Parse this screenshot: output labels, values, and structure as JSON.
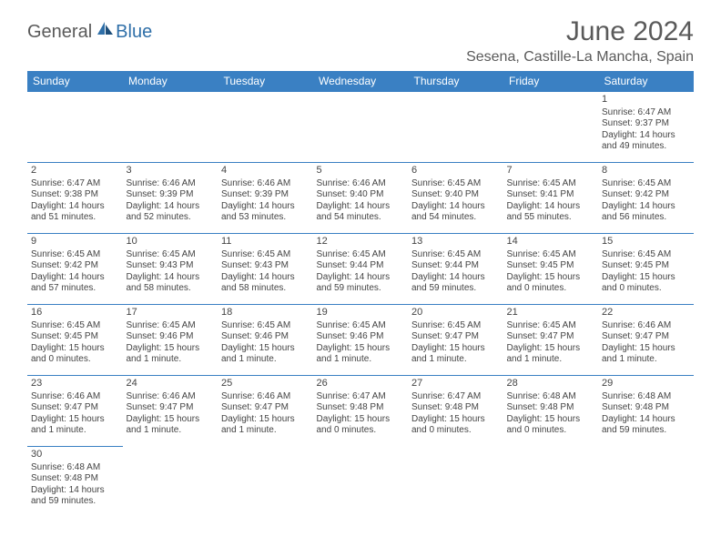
{
  "logo": {
    "part1": "General",
    "part2": "Blue"
  },
  "title": "June 2024",
  "location": "Sesena, Castille-La Mancha, Spain",
  "colors": {
    "header_bg": "#3a80c3",
    "header_text": "#ffffff",
    "border": "#3a80c3",
    "text": "#444444",
    "title_text": "#5a5a5a",
    "logo_blue": "#2f6fa8"
  },
  "day_headers": [
    "Sunday",
    "Monday",
    "Tuesday",
    "Wednesday",
    "Thursday",
    "Friday",
    "Saturday"
  ],
  "weeks": [
    [
      null,
      null,
      null,
      null,
      null,
      null,
      {
        "n": "1",
        "sr": "Sunrise: 6:47 AM",
        "ss": "Sunset: 9:37 PM",
        "dl1": "Daylight: 14 hours",
        "dl2": "and 49 minutes."
      }
    ],
    [
      {
        "n": "2",
        "sr": "Sunrise: 6:47 AM",
        "ss": "Sunset: 9:38 PM",
        "dl1": "Daylight: 14 hours",
        "dl2": "and 51 minutes."
      },
      {
        "n": "3",
        "sr": "Sunrise: 6:46 AM",
        "ss": "Sunset: 9:39 PM",
        "dl1": "Daylight: 14 hours",
        "dl2": "and 52 minutes."
      },
      {
        "n": "4",
        "sr": "Sunrise: 6:46 AM",
        "ss": "Sunset: 9:39 PM",
        "dl1": "Daylight: 14 hours",
        "dl2": "and 53 minutes."
      },
      {
        "n": "5",
        "sr": "Sunrise: 6:46 AM",
        "ss": "Sunset: 9:40 PM",
        "dl1": "Daylight: 14 hours",
        "dl2": "and 54 minutes."
      },
      {
        "n": "6",
        "sr": "Sunrise: 6:45 AM",
        "ss": "Sunset: 9:40 PM",
        "dl1": "Daylight: 14 hours",
        "dl2": "and 54 minutes."
      },
      {
        "n": "7",
        "sr": "Sunrise: 6:45 AM",
        "ss": "Sunset: 9:41 PM",
        "dl1": "Daylight: 14 hours",
        "dl2": "and 55 minutes."
      },
      {
        "n": "8",
        "sr": "Sunrise: 6:45 AM",
        "ss": "Sunset: 9:42 PM",
        "dl1": "Daylight: 14 hours",
        "dl2": "and 56 minutes."
      }
    ],
    [
      {
        "n": "9",
        "sr": "Sunrise: 6:45 AM",
        "ss": "Sunset: 9:42 PM",
        "dl1": "Daylight: 14 hours",
        "dl2": "and 57 minutes."
      },
      {
        "n": "10",
        "sr": "Sunrise: 6:45 AM",
        "ss": "Sunset: 9:43 PM",
        "dl1": "Daylight: 14 hours",
        "dl2": "and 58 minutes."
      },
      {
        "n": "11",
        "sr": "Sunrise: 6:45 AM",
        "ss": "Sunset: 9:43 PM",
        "dl1": "Daylight: 14 hours",
        "dl2": "and 58 minutes."
      },
      {
        "n": "12",
        "sr": "Sunrise: 6:45 AM",
        "ss": "Sunset: 9:44 PM",
        "dl1": "Daylight: 14 hours",
        "dl2": "and 59 minutes."
      },
      {
        "n": "13",
        "sr": "Sunrise: 6:45 AM",
        "ss": "Sunset: 9:44 PM",
        "dl1": "Daylight: 14 hours",
        "dl2": "and 59 minutes."
      },
      {
        "n": "14",
        "sr": "Sunrise: 6:45 AM",
        "ss": "Sunset: 9:45 PM",
        "dl1": "Daylight: 15 hours",
        "dl2": "and 0 minutes."
      },
      {
        "n": "15",
        "sr": "Sunrise: 6:45 AM",
        "ss": "Sunset: 9:45 PM",
        "dl1": "Daylight: 15 hours",
        "dl2": "and 0 minutes."
      }
    ],
    [
      {
        "n": "16",
        "sr": "Sunrise: 6:45 AM",
        "ss": "Sunset: 9:45 PM",
        "dl1": "Daylight: 15 hours",
        "dl2": "and 0 minutes."
      },
      {
        "n": "17",
        "sr": "Sunrise: 6:45 AM",
        "ss": "Sunset: 9:46 PM",
        "dl1": "Daylight: 15 hours",
        "dl2": "and 1 minute."
      },
      {
        "n": "18",
        "sr": "Sunrise: 6:45 AM",
        "ss": "Sunset: 9:46 PM",
        "dl1": "Daylight: 15 hours",
        "dl2": "and 1 minute."
      },
      {
        "n": "19",
        "sr": "Sunrise: 6:45 AM",
        "ss": "Sunset: 9:46 PM",
        "dl1": "Daylight: 15 hours",
        "dl2": "and 1 minute."
      },
      {
        "n": "20",
        "sr": "Sunrise: 6:45 AM",
        "ss": "Sunset: 9:47 PM",
        "dl1": "Daylight: 15 hours",
        "dl2": "and 1 minute."
      },
      {
        "n": "21",
        "sr": "Sunrise: 6:45 AM",
        "ss": "Sunset: 9:47 PM",
        "dl1": "Daylight: 15 hours",
        "dl2": "and 1 minute."
      },
      {
        "n": "22",
        "sr": "Sunrise: 6:46 AM",
        "ss": "Sunset: 9:47 PM",
        "dl1": "Daylight: 15 hours",
        "dl2": "and 1 minute."
      }
    ],
    [
      {
        "n": "23",
        "sr": "Sunrise: 6:46 AM",
        "ss": "Sunset: 9:47 PM",
        "dl1": "Daylight: 15 hours",
        "dl2": "and 1 minute."
      },
      {
        "n": "24",
        "sr": "Sunrise: 6:46 AM",
        "ss": "Sunset: 9:47 PM",
        "dl1": "Daylight: 15 hours",
        "dl2": "and 1 minute."
      },
      {
        "n": "25",
        "sr": "Sunrise: 6:46 AM",
        "ss": "Sunset: 9:47 PM",
        "dl1": "Daylight: 15 hours",
        "dl2": "and 1 minute."
      },
      {
        "n": "26",
        "sr": "Sunrise: 6:47 AM",
        "ss": "Sunset: 9:48 PM",
        "dl1": "Daylight: 15 hours",
        "dl2": "and 0 minutes."
      },
      {
        "n": "27",
        "sr": "Sunrise: 6:47 AM",
        "ss": "Sunset: 9:48 PM",
        "dl1": "Daylight: 15 hours",
        "dl2": "and 0 minutes."
      },
      {
        "n": "28",
        "sr": "Sunrise: 6:48 AM",
        "ss": "Sunset: 9:48 PM",
        "dl1": "Daylight: 15 hours",
        "dl2": "and 0 minutes."
      },
      {
        "n": "29",
        "sr": "Sunrise: 6:48 AM",
        "ss": "Sunset: 9:48 PM",
        "dl1": "Daylight: 14 hours",
        "dl2": "and 59 minutes."
      }
    ],
    [
      {
        "n": "30",
        "sr": "Sunrise: 6:48 AM",
        "ss": "Sunset: 9:48 PM",
        "dl1": "Daylight: 14 hours",
        "dl2": "and 59 minutes."
      },
      null,
      null,
      null,
      null,
      null,
      null
    ]
  ]
}
